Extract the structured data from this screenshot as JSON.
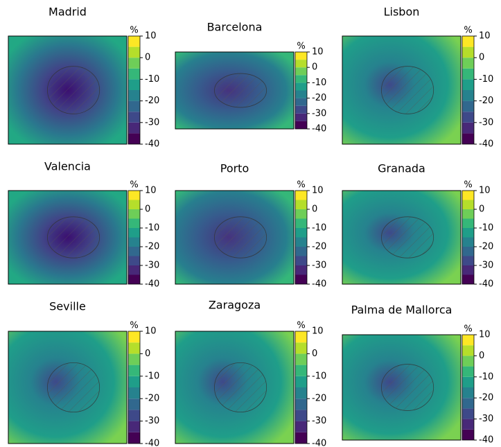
{
  "chart_data": [
    {
      "type": "heatmap",
      "title": "Madrid",
      "colorbar_label": "%",
      "clim": [
        -40,
        10
      ],
      "cticks": [
        10,
        0,
        -10,
        -20,
        -30,
        -40
      ],
      "levels": [
        -40,
        -35,
        -30,
        -25,
        -20,
        -15,
        -10,
        -5,
        0,
        5,
        10
      ],
      "colors": [
        "#440154",
        "#482878",
        "#3e4989",
        "#31688e",
        "#26828e",
        "#1f9e89",
        "#35b779",
        "#6ece58",
        "#b5de2b",
        "#fde725"
      ]
    },
    {
      "type": "heatmap",
      "title": "Barcelona",
      "colorbar_label": "%",
      "clim": [
        -40,
        10
      ],
      "cticks": [
        10,
        0,
        -10,
        -20,
        -30,
        -40
      ],
      "levels": [
        -40,
        -35,
        -30,
        -25,
        -20,
        -15,
        -10,
        -5,
        0,
        5,
        10
      ],
      "colors": [
        "#440154",
        "#482878",
        "#3e4989",
        "#31688e",
        "#26828e",
        "#1f9e89",
        "#35b779",
        "#6ece58",
        "#b5de2b",
        "#fde725"
      ]
    },
    {
      "type": "heatmap",
      "title": "Lisbon",
      "colorbar_label": "%",
      "clim": [
        -40,
        10
      ],
      "cticks": [
        10,
        0,
        -10,
        -20,
        -30,
        -40
      ],
      "levels": [
        -40,
        -35,
        -30,
        -25,
        -20,
        -15,
        -10,
        -5,
        0,
        5,
        10
      ],
      "colors": [
        "#440154",
        "#482878",
        "#3e4989",
        "#31688e",
        "#26828e",
        "#1f9e89",
        "#35b779",
        "#6ece58",
        "#b5de2b",
        "#fde725"
      ]
    },
    {
      "type": "heatmap",
      "title": "Valencia",
      "colorbar_label": "%",
      "clim": [
        -40,
        10
      ],
      "cticks": [
        10,
        0,
        -10,
        -20,
        -30,
        -40
      ],
      "levels": [
        -40,
        -35,
        -30,
        -25,
        -20,
        -15,
        -10,
        -5,
        0,
        5,
        10
      ],
      "colors": [
        "#440154",
        "#482878",
        "#3e4989",
        "#31688e",
        "#26828e",
        "#1f9e89",
        "#35b779",
        "#6ece58",
        "#b5de2b",
        "#fde725"
      ]
    },
    {
      "type": "heatmap",
      "title": "Porto",
      "colorbar_label": "%",
      "clim": [
        -40,
        10
      ],
      "cticks": [
        10,
        0,
        -10,
        -20,
        -30,
        -40
      ],
      "levels": [
        -40,
        -35,
        -30,
        -25,
        -20,
        -15,
        -10,
        -5,
        0,
        5,
        10
      ],
      "colors": [
        "#440154",
        "#482878",
        "#3e4989",
        "#31688e",
        "#26828e",
        "#1f9e89",
        "#35b779",
        "#6ece58",
        "#b5de2b",
        "#fde725"
      ]
    },
    {
      "type": "heatmap",
      "title": "Granada",
      "colorbar_label": "%",
      "clim": [
        -40,
        10
      ],
      "cticks": [
        10,
        0,
        -10,
        -20,
        -30,
        -40
      ],
      "levels": [
        -40,
        -35,
        -30,
        -25,
        -20,
        -15,
        -10,
        -5,
        0,
        5,
        10
      ],
      "colors": [
        "#440154",
        "#482878",
        "#3e4989",
        "#31688e",
        "#26828e",
        "#1f9e89",
        "#35b779",
        "#6ece58",
        "#b5de2b",
        "#fde725"
      ]
    },
    {
      "type": "heatmap",
      "title": "Seville",
      "colorbar_label": "%",
      "clim": [
        -40,
        10
      ],
      "cticks": [
        10,
        0,
        -10,
        -20,
        -30,
        -40
      ],
      "levels": [
        -40,
        -35,
        -30,
        -25,
        -20,
        -15,
        -10,
        -5,
        0,
        5,
        10
      ],
      "colors": [
        "#440154",
        "#482878",
        "#3e4989",
        "#31688e",
        "#26828e",
        "#1f9e89",
        "#35b779",
        "#6ece58",
        "#b5de2b",
        "#fde725"
      ]
    },
    {
      "type": "heatmap",
      "title": "Zaragoza",
      "colorbar_label": "%",
      "clim": [
        -40,
        10
      ],
      "cticks": [
        10,
        0,
        -10,
        -20,
        -30,
        -40
      ],
      "levels": [
        -40,
        -35,
        -30,
        -25,
        -20,
        -15,
        -10,
        -5,
        0,
        5,
        10
      ],
      "colors": [
        "#440154",
        "#482878",
        "#3e4989",
        "#31688e",
        "#26828e",
        "#1f9e89",
        "#35b779",
        "#6ece58",
        "#b5de2b",
        "#fde725"
      ]
    },
    {
      "type": "heatmap",
      "title": "Palma de Mallorca",
      "colorbar_label": "%",
      "clim": [
        -40,
        10
      ],
      "cticks": [
        10,
        0,
        -10,
        -20,
        -30,
        -40
      ],
      "levels": [
        -40,
        -35,
        -30,
        -25,
        -20,
        -15,
        -10,
        -5,
        0,
        5,
        10
      ],
      "colors": [
        "#440154",
        "#482878",
        "#3e4989",
        "#31688e",
        "#26828e",
        "#1f9e89",
        "#35b779",
        "#6ece58",
        "#b5de2b",
        "#fde725"
      ]
    }
  ]
}
